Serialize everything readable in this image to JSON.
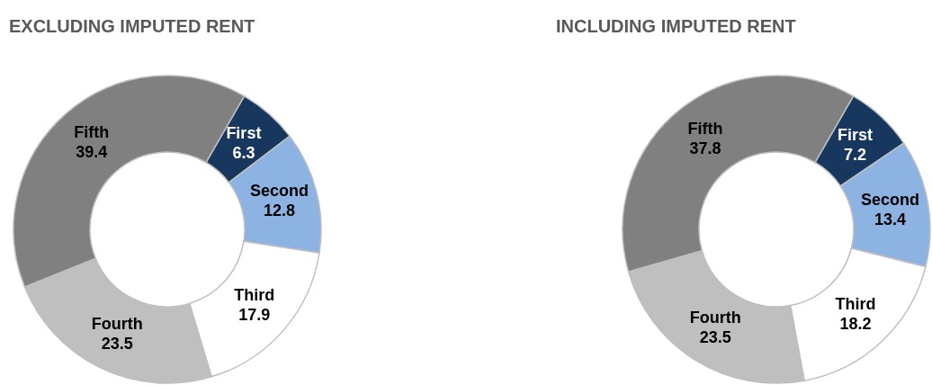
{
  "chart_data": [
    {
      "type": "donut",
      "title": "EXCLUDING IMPUTED RENT",
      "categories": [
        "First",
        "Second",
        "Third",
        "Fourth",
        "Fifth"
      ],
      "values": [
        6.3,
        12.8,
        17.9,
        23.5,
        39.4
      ],
      "colors": [
        "#17375e",
        "#8db3e2",
        "#ffffff",
        "#bfbfbf",
        "#808080"
      ],
      "data_labels": true
    },
    {
      "type": "donut",
      "title": "INCLUDING IMPUTED RENT",
      "categories": [
        "First",
        "Second",
        "Third",
        "Fourth",
        "Fifth"
      ],
      "values": [
        7.2,
        13.4,
        18.2,
        23.5,
        37.8
      ],
      "colors": [
        "#17375e",
        "#8db3e2",
        "#ffffff",
        "#bfbfbf",
        "#808080"
      ],
      "data_labels": true
    }
  ]
}
